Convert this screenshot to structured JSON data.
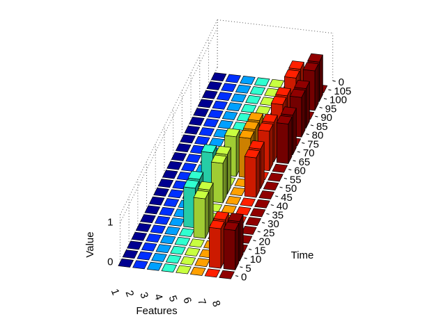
{
  "chart_data": {
    "type": "bar3",
    "xlabel": "Features",
    "ylabel": "Time",
    "zlabel": "Value",
    "categories": [
      "1",
      "2",
      "3",
      "4",
      "5",
      "6",
      "7",
      "8"
    ],
    "x": [
      0,
      5,
      10,
      15,
      20,
      25,
      30,
      35,
      40,
      45,
      50,
      55,
      60,
      65,
      70,
      75,
      80,
      85,
      90,
      95,
      100,
      105
    ],
    "ylim": [
      0,
      110
    ],
    "yticks": [
      0,
      5,
      10,
      15,
      20,
      25,
      30,
      35,
      40,
      45,
      50,
      55,
      60,
      65,
      70,
      75,
      80,
      85,
      90,
      95,
      100,
      105,
      {
        "value": 110,
        "label": "0"
      }
    ],
    "zlim": [
      0,
      1.2
    ],
    "zticks": [
      0,
      1
    ],
    "series": [
      {
        "color": "#000090",
        "values": [
          0,
          0,
          0,
          0,
          0,
          0,
          0,
          0,
          0,
          0,
          0,
          0,
          0,
          0,
          0,
          0,
          0,
          0,
          0,
          0,
          0,
          0
        ]
      },
      {
        "color": "#0030ff",
        "values": [
          0,
          0,
          0,
          0,
          0,
          0,
          0,
          0,
          0,
          0,
          0,
          0,
          0,
          0,
          0,
          0,
          0,
          0,
          0,
          0,
          0,
          0
        ]
      },
      {
        "color": "#00a0ff",
        "values": [
          0,
          0,
          0,
          0,
          0,
          0,
          0,
          0,
          0,
          0,
          0,
          0,
          0,
          0,
          0,
          0,
          0,
          0,
          0,
          0,
          0,
          0
        ]
      },
      {
        "color": "#30ffd0",
        "values": [
          0,
          0,
          0,
          0,
          0,
          1,
          1,
          0,
          0,
          1,
          0,
          0,
          0,
          0,
          0,
          0,
          0,
          0,
          0,
          0,
          0,
          0
        ]
      },
      {
        "color": "#c8ff40",
        "values": [
          0,
          0,
          0,
          0,
          1,
          1,
          0,
          0,
          1,
          1,
          0,
          1,
          0,
          0,
          0,
          0,
          0,
          0,
          0,
          0,
          0,
          0
        ]
      },
      {
        "color": "#ffa000",
        "values": [
          0,
          0,
          0,
          0,
          0,
          0,
          0,
          0,
          0,
          0,
          0,
          1,
          1,
          1,
          0,
          0,
          0,
          0,
          0,
          0,
          0,
          0
        ]
      },
      {
        "color": "#ff2000",
        "values": [
          0,
          1,
          1,
          0,
          0,
          0,
          0,
          0,
          0,
          1,
          1,
          0,
          1,
          1,
          0,
          1,
          1,
          0,
          1,
          1,
          0,
          0
        ]
      },
      {
        "color": "#900000",
        "values": [
          0,
          1,
          1,
          0,
          0,
          0,
          0,
          0,
          0,
          0,
          0,
          0,
          0,
          1,
          1,
          0,
          1,
          1,
          0,
          1,
          1,
          0
        ]
      }
    ]
  }
}
